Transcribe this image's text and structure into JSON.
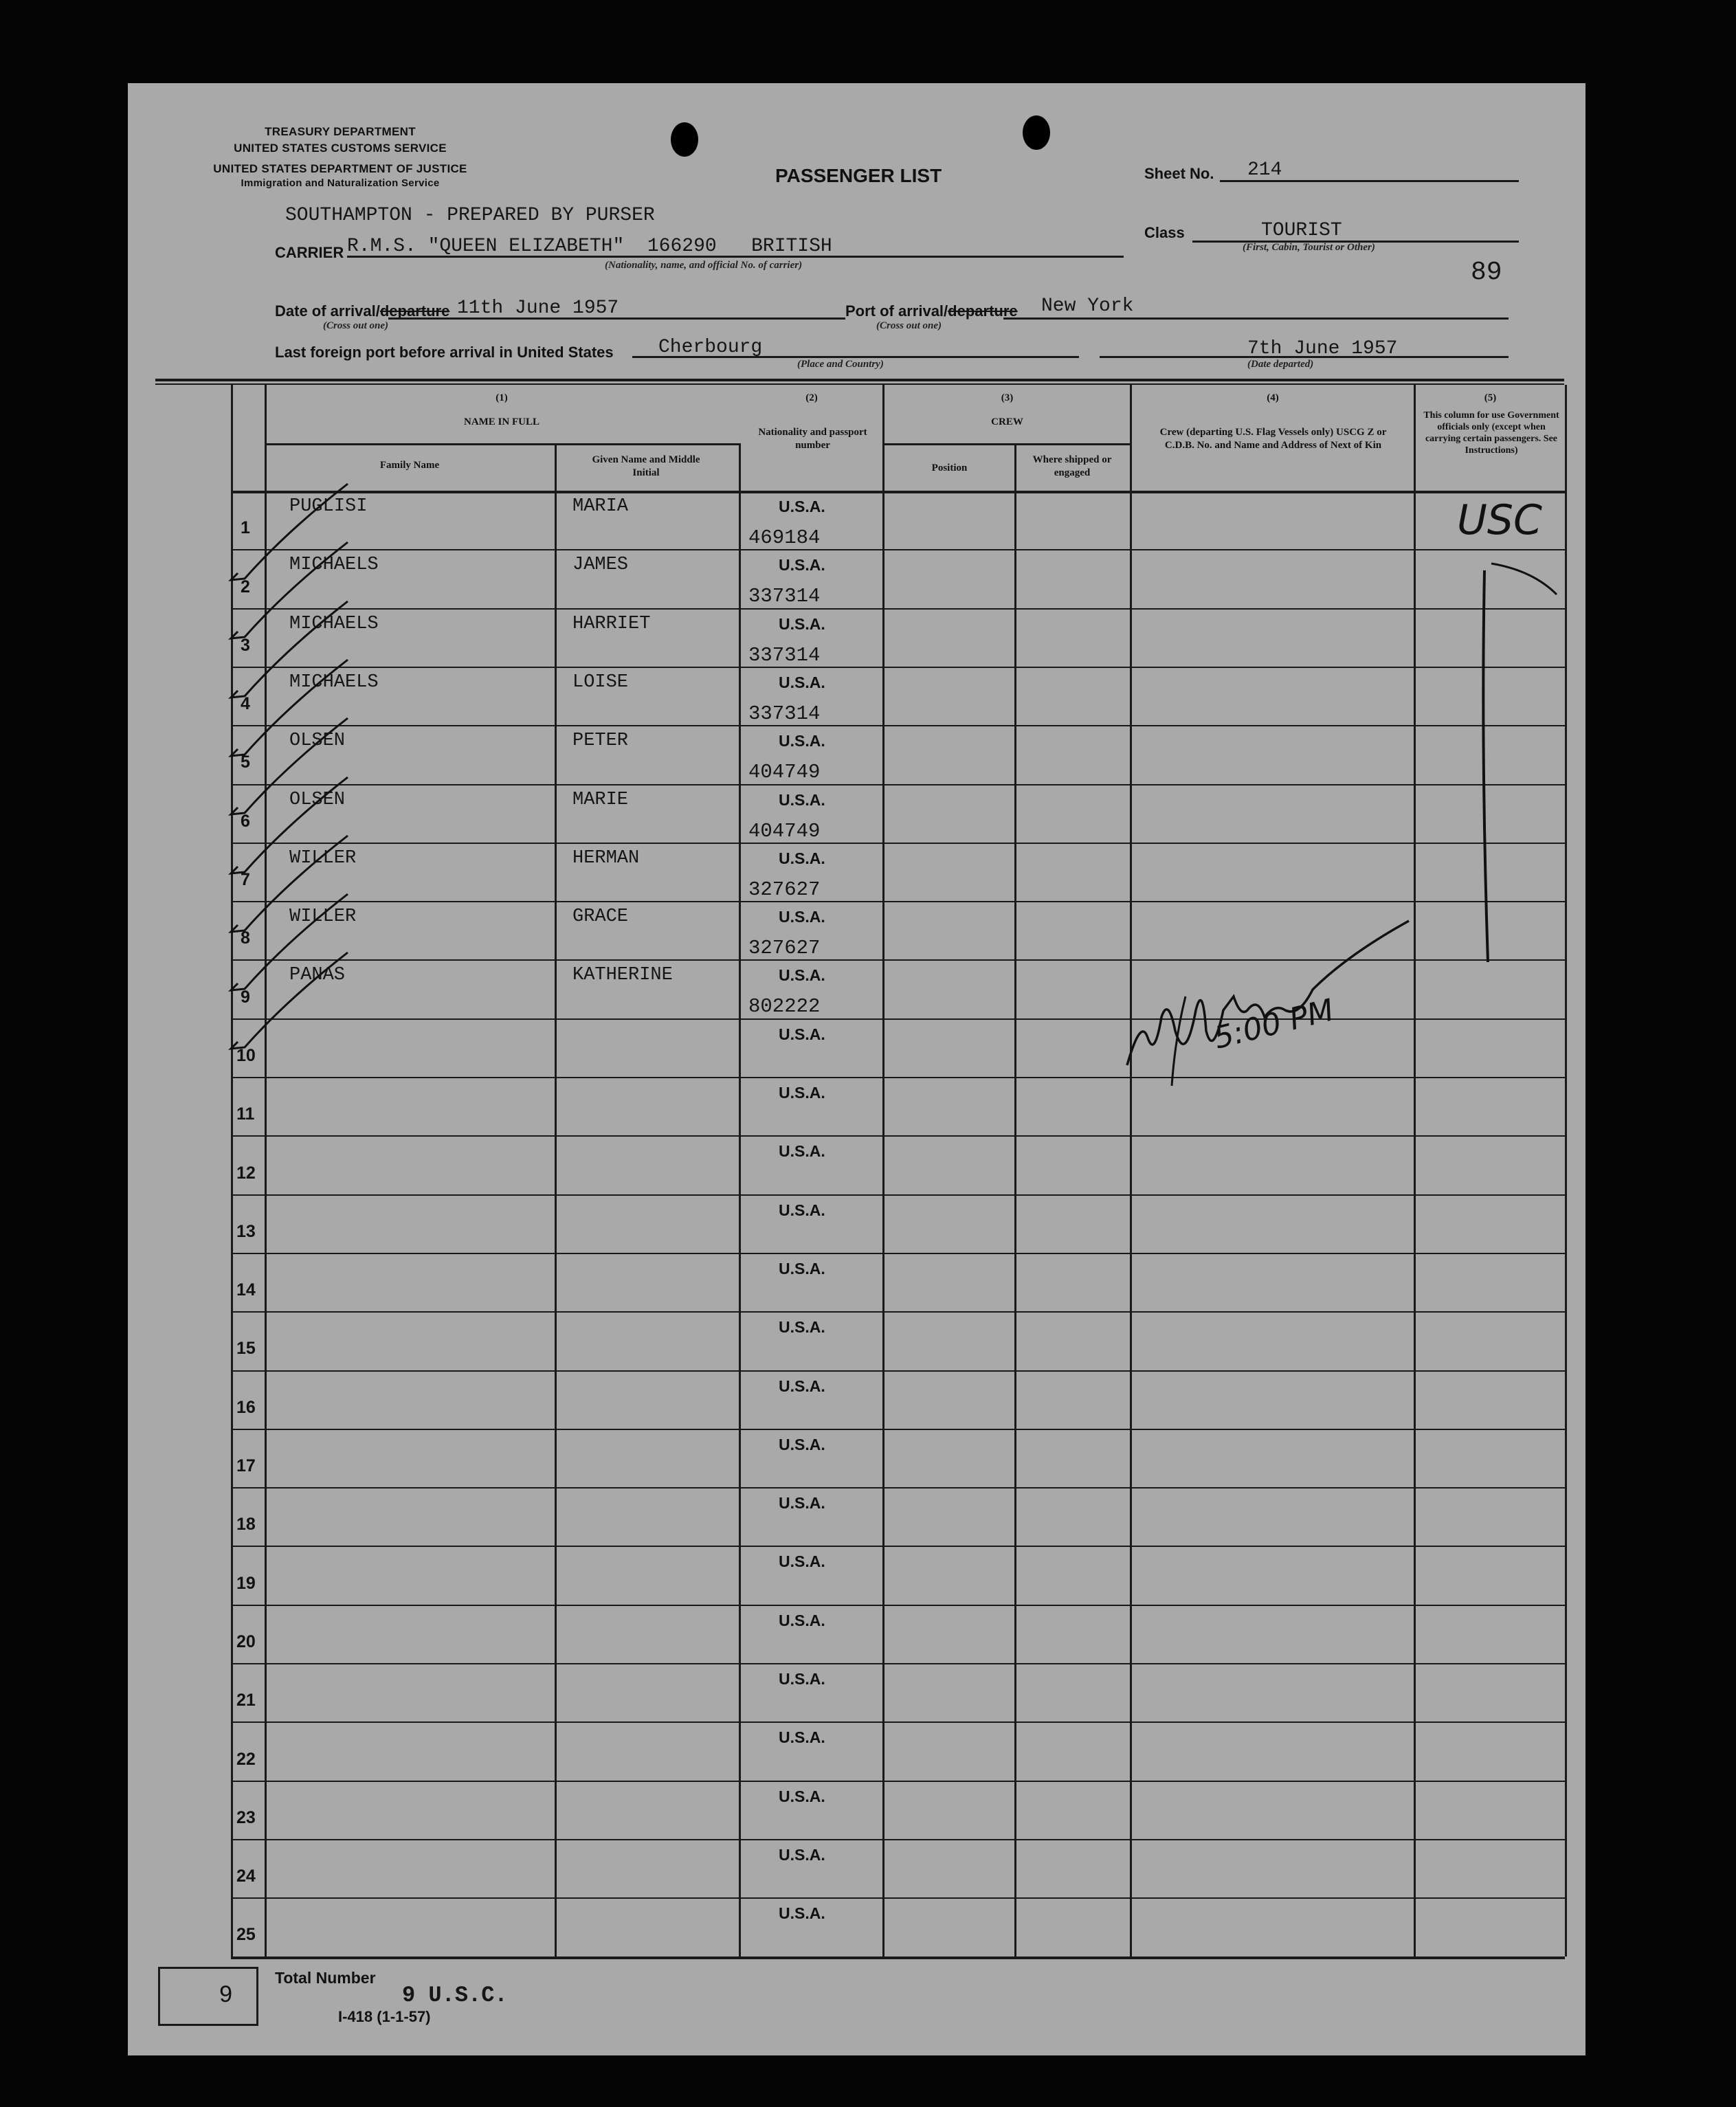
{
  "agency": {
    "line1": "TREASURY DEPARTMENT",
    "line2": "UNITED STATES CUSTOMS SERVICE",
    "line3": "UNITED STATES DEPARTMENT OF JUSTICE",
    "line4": "Immigration and Naturalization Service"
  },
  "form": {
    "title": "PASSENGER LIST",
    "sheet_label": "Sheet No.",
    "sheet_no": "214",
    "prepared_note": "SOUTHAMPTON - PREPARED BY PURSER",
    "class_label": "Class",
    "class_value": "TOURIST",
    "class_hint": "(First, Cabin, Tourist or Other)",
    "carrier_label": "CARRIER",
    "carrier_value": "R.M.S. \"QUEEN ELIZABETH\"  166290   BRITISH",
    "carrier_hint": "(Nationality, name, and official No. of carrier)",
    "page_stamp": "89",
    "date_label": "Date of arrival/",
    "date_struck": "departure",
    "date_value": "11th June 1957",
    "cross_out_hint": "(Cross out one)",
    "port_label": "Port of arrival/",
    "port_struck": "departure",
    "port_value": "New York",
    "last_port_label": "Last foreign port before arrival in United States",
    "last_port_value": "Cherbourg",
    "place_hint": "(Place and Country)",
    "date_departed": "7th June 1957",
    "date_departed_hint": "(Date departed)"
  },
  "columns": {
    "c1_num": "(1)",
    "c1_title": "NAME IN FULL",
    "family": "Family Name",
    "given": "Given Name and Middle Initial",
    "c2_num": "(2)",
    "c2_title": "Nationality and passport number",
    "c3_num": "(3)",
    "c3_title": "CREW",
    "position": "Position",
    "where": "Where shipped or engaged",
    "c4_num": "(4)",
    "c4_title": "Crew (departing U.S. Flag Vessels only) USCG Z or C.D.B. No. and Name and Address of Next of Kin",
    "c5_num": "(5)",
    "c5_title": "This column for use Government officials only (except when carrying certain passengers. See Instructions)"
  },
  "rows": [
    {
      "n": "1",
      "family": "PUGLISI",
      "given": "MARIA",
      "nat": "U.S.A.",
      "passport": "469184"
    },
    {
      "n": "2",
      "family": "MICHAELS",
      "given": "JAMES",
      "nat": "U.S.A.",
      "passport": "337314"
    },
    {
      "n": "3",
      "family": "MICHAELS",
      "given": "HARRIET",
      "nat": "U.S.A.",
      "passport": "337314"
    },
    {
      "n": "4",
      "family": "MICHAELS",
      "given": "LOISE",
      "nat": "U.S.A.",
      "passport": "337314"
    },
    {
      "n": "5",
      "family": "OLSEN",
      "given": "PETER",
      "nat": "U.S.A.",
      "passport": "404749"
    },
    {
      "n": "6",
      "family": "OLSEN",
      "given": "MARIE",
      "nat": "U.S.A.",
      "passport": "404749"
    },
    {
      "n": "7",
      "family": "WILLER",
      "given": "HERMAN",
      "nat": "U.S.A.",
      "passport": "327627"
    },
    {
      "n": "8",
      "family": "WILLER",
      "given": "GRACE",
      "nat": "U.S.A.",
      "passport": "327627"
    },
    {
      "n": "9",
      "family": "PANAS",
      "given": "KATHERINE",
      "nat": "U.S.A.",
      "passport": "802222"
    },
    {
      "n": "10",
      "family": "",
      "given": "",
      "nat": "U.S.A.",
      "passport": ""
    },
    {
      "n": "11",
      "family": "",
      "given": "",
      "nat": "U.S.A.",
      "passport": ""
    },
    {
      "n": "12",
      "family": "",
      "given": "",
      "nat": "U.S.A.",
      "passport": ""
    },
    {
      "n": "13",
      "family": "",
      "given": "",
      "nat": "U.S.A.",
      "passport": ""
    },
    {
      "n": "14",
      "family": "",
      "given": "",
      "nat": "U.S.A.",
      "passport": ""
    },
    {
      "n": "15",
      "family": "",
      "given": "",
      "nat": "U.S.A.",
      "passport": ""
    },
    {
      "n": "16",
      "family": "",
      "given": "",
      "nat": "U.S.A.",
      "passport": ""
    },
    {
      "n": "17",
      "family": "",
      "given": "",
      "nat": "U.S.A.",
      "passport": ""
    },
    {
      "n": "18",
      "family": "",
      "given": "",
      "nat": "U.S.A.",
      "passport": ""
    },
    {
      "n": "19",
      "family": "",
      "given": "",
      "nat": "U.S.A.",
      "passport": ""
    },
    {
      "n": "20",
      "family": "",
      "given": "",
      "nat": "U.S.A.",
      "passport": ""
    },
    {
      "n": "21",
      "family": "",
      "given": "",
      "nat": "U.S.A.",
      "passport": ""
    },
    {
      "n": "22",
      "family": "",
      "given": "",
      "nat": "U.S.A.",
      "passport": ""
    },
    {
      "n": "23",
      "family": "",
      "given": "",
      "nat": "U.S.A.",
      "passport": ""
    },
    {
      "n": "24",
      "family": "",
      "given": "",
      "nat": "U.S.A.",
      "passport": ""
    },
    {
      "n": "25",
      "family": "",
      "given": "",
      "nat": "U.S.A.",
      "passport": ""
    }
  ],
  "annotations": {
    "official_mark": "USC",
    "time_note": "5:00 PM"
  },
  "footer": {
    "total_box": "9",
    "total_label": "Total Number",
    "total_note": "9 U.S.C.",
    "form_number": "I-418 (1-1-57)"
  },
  "colors": {
    "paper": "#a9a9a9",
    "ink": "#111111",
    "background": "#050505"
  }
}
